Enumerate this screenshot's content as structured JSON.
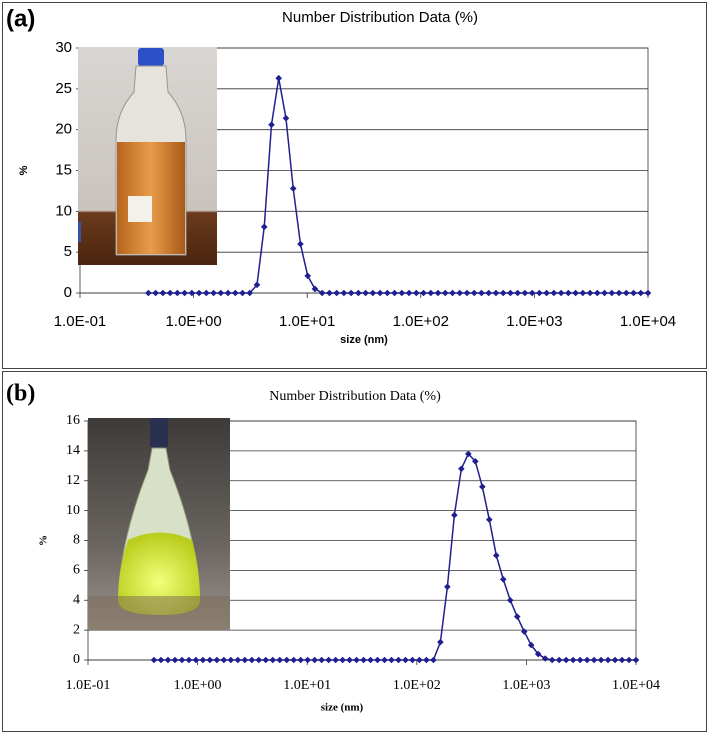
{
  "chart_data": [
    {
      "type": "line",
      "panel_label": "(a)",
      "title": "Number Distribution Data (%)",
      "xlabel": "size (nm)",
      "ylabel": "%",
      "xscale": "log",
      "grid": true,
      "color": "#1f1f8f",
      "x": [
        0.4,
        0.4632,
        0.5365,
        0.6213,
        0.7195,
        0.8332,
        0.9649,
        1.117,
        1.294,
        1.499,
        1.736,
        2.01,
        2.328,
        2.696,
        3.122,
        3.615,
        4.187,
        4.849,
        5.615,
        6.503,
        7.531,
        8.721,
        10.1,
        11.7,
        13.54,
        15.69,
        18.17,
        21.04,
        24.36,
        28.21,
        32.67,
        37.84,
        43.82,
        50.75,
        58.77,
        68.06,
        78.82,
        91.28,
        105.7,
        122.4,
        141.8,
        164.2,
        190.1,
        220.2,
        255,
        295.3,
        342,
        396.1,
        458.7,
        531.2,
        615.1,
        712.4,
        825,
        955.4,
        1106,
        1281,
        1484,
        1718,
        1990,
        2305,
        2669,
        3091,
        3580,
        4145,
        4801,
        5560,
        6439,
        7456,
        8635,
        10000
      ],
      "values": [
        0,
        0,
        0,
        0,
        0,
        0,
        0,
        0,
        0,
        0,
        0,
        0,
        0,
        0,
        0,
        1.0,
        8.1,
        20.6,
        26.3,
        21.4,
        12.8,
        6.0,
        2.1,
        0.5,
        0,
        0,
        0,
        0,
        0,
        0,
        0,
        0,
        0,
        0,
        0,
        0,
        0,
        0,
        0,
        0,
        0,
        0,
        0,
        0,
        0,
        0,
        0,
        0,
        0,
        0,
        0,
        0,
        0,
        0,
        0,
        0,
        0,
        0,
        0,
        0,
        0,
        0,
        0,
        0,
        0,
        0,
        0,
        0,
        0,
        0
      ],
      "xlim": [
        0.1,
        10000
      ],
      "xticks": [
        {
          "value": 0.1,
          "label": "1.0E-01"
        },
        {
          "value": 1,
          "label": "1.0E+00"
        },
        {
          "value": 10,
          "label": "1.0E+01"
        },
        {
          "value": 100,
          "label": "1.0E+02"
        },
        {
          "value": 1000,
          "label": "1.0E+03"
        },
        {
          "value": 10000,
          "label": "1.0E+04"
        }
      ],
      "ylim": [
        0,
        30
      ],
      "yticks": [
        0,
        5,
        10,
        15,
        20,
        25,
        30
      ]
    },
    {
      "type": "line",
      "panel_label": "(b)",
      "title": "Number Distribution Data (%)",
      "xlabel": "size (nm)",
      "ylabel": "%",
      "xscale": "log",
      "grid": true,
      "color": "#1f1f8f",
      "x": [
        0.4,
        0.4632,
        0.5365,
        0.6213,
        0.7195,
        0.8332,
        0.9649,
        1.117,
        1.294,
        1.499,
        1.736,
        2.01,
        2.328,
        2.696,
        3.122,
        3.615,
        4.187,
        4.849,
        5.615,
        6.503,
        7.531,
        8.721,
        10.1,
        11.7,
        13.54,
        15.69,
        18.17,
        21.04,
        24.36,
        28.21,
        32.67,
        37.84,
        43.82,
        50.75,
        58.77,
        68.06,
        78.82,
        91.28,
        105.7,
        122.4,
        141.8,
        164.2,
        190.1,
        220.2,
        255,
        295.3,
        342,
        396.1,
        458.7,
        531.2,
        615.1,
        712.4,
        825,
        955.4,
        1106,
        1281,
        1484,
        1718,
        1990,
        2305,
        2669,
        3091,
        3580,
        4145,
        4801,
        5560,
        6439,
        7456,
        8635,
        10000
      ],
      "values": [
        0,
        0,
        0,
        0,
        0,
        0,
        0,
        0,
        0,
        0,
        0,
        0,
        0,
        0,
        0,
        0,
        0,
        0,
        0,
        0,
        0,
        0,
        0,
        0,
        0,
        0,
        0,
        0,
        0,
        0,
        0,
        0,
        0,
        0,
        0,
        0,
        0,
        0,
        0,
        0,
        0,
        1.2,
        4.9,
        9.7,
        12.8,
        13.8,
        13.3,
        11.6,
        9.4,
        7.0,
        5.4,
        4.0,
        2.9,
        1.9,
        1.0,
        0.4,
        0.1,
        0,
        0,
        0,
        0,
        0,
        0,
        0,
        0,
        0,
        0,
        0,
        0,
        0
      ],
      "xlim": [
        0.1,
        10000
      ],
      "xticks": [
        {
          "value": 0.1,
          "label": "1.0E-01"
        },
        {
          "value": 1,
          "label": "1.0E+00"
        },
        {
          "value": 10,
          "label": "1.0E+01"
        },
        {
          "value": 100,
          "label": "1.0E+02"
        },
        {
          "value": 1000,
          "label": "1.0E+03"
        },
        {
          "value": 10000,
          "label": "1.0E+04"
        }
      ],
      "ylim": [
        0,
        16
      ],
      "yticks": [
        0,
        2,
        4,
        6,
        8,
        10,
        12,
        14,
        16
      ]
    }
  ]
}
